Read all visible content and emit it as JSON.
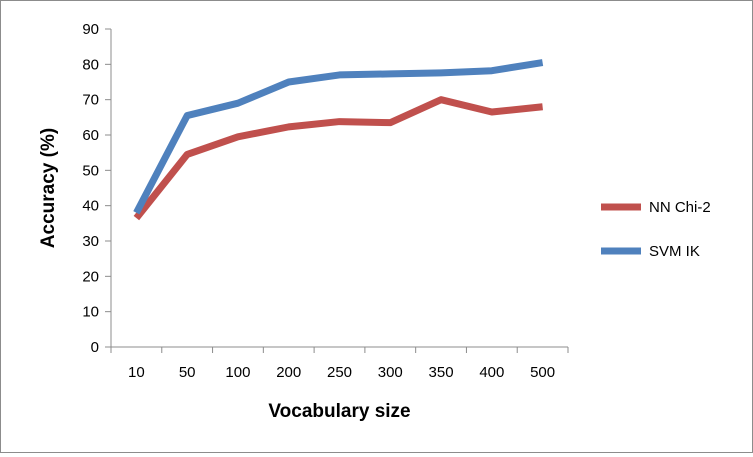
{
  "chart_data": {
    "type": "line",
    "title": "",
    "xlabel": "Vocabulary size",
    "ylabel": "Accuracy (%)",
    "ylim": [
      0,
      90
    ],
    "y_ticks": [
      0,
      10,
      20,
      30,
      40,
      50,
      60,
      70,
      80,
      90
    ],
    "categories": [
      "10",
      "50",
      "100",
      "200",
      "250",
      "300",
      "350",
      "400",
      "500"
    ],
    "grid": false,
    "legend_position": "right",
    "series": [
      {
        "name": "NN Chi-2",
        "color": "#c0504d",
        "values": [
          36.5,
          54.5,
          59.5,
          62.3,
          63.8,
          63.5,
          70,
          66.5,
          68
        ]
      },
      {
        "name": "SVM IK",
        "color": "#4f81bd",
        "values": [
          38,
          65.5,
          69,
          75,
          77,
          77.3,
          77.6,
          78.2,
          80.5
        ]
      }
    ]
  }
}
